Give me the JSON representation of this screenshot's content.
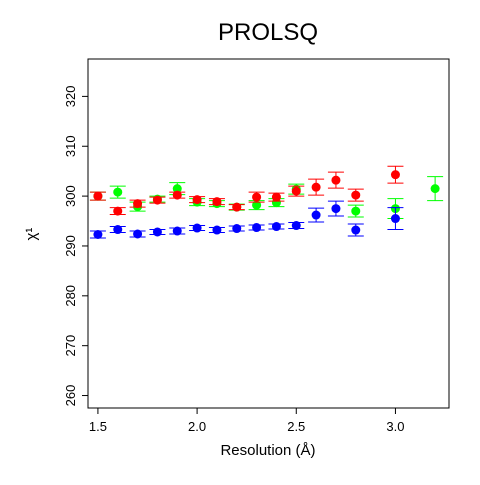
{
  "chart_data": {
    "type": "scatter",
    "title": "PROLSQ",
    "xlabel": "Resolution (Å)",
    "ylabel": "χ¹",
    "xlim": [
      1.45,
      3.27
    ],
    "ylim": [
      257.5,
      327.5
    ],
    "x_ticks": [
      1.5,
      2.0,
      2.5,
      3.0
    ],
    "x_tick_labels": [
      "1.5",
      "2.0",
      "2.5",
      "3.0"
    ],
    "y_ticks": [
      260,
      270,
      280,
      290,
      300,
      310,
      320
    ],
    "y_tick_labels": [
      "260",
      "270",
      "280",
      "290",
      "300",
      "310",
      "320"
    ],
    "grid": false,
    "legend": "none",
    "series": [
      {
        "color": "#00ff00",
        "points": [
          {
            "x": 1.5,
            "y": 300.0,
            "err": 0.8
          },
          {
            "x": 1.6,
            "y": 300.8,
            "err": 1.2
          },
          {
            "x": 1.7,
            "y": 297.9,
            "err": 0.9
          },
          {
            "x": 1.8,
            "y": 299.4,
            "err": 0.6
          },
          {
            "x": 1.9,
            "y": 301.5,
            "err": 1.2
          },
          {
            "x": 2.0,
            "y": 298.8,
            "err": 0.7
          },
          {
            "x": 2.1,
            "y": 298.5,
            "err": 0.6
          },
          {
            "x": 2.2,
            "y": 297.8,
            "err": 0.6
          },
          {
            "x": 2.3,
            "y": 298.2,
            "err": 0.9
          },
          {
            "x": 2.4,
            "y": 298.7,
            "err": 0.8
          },
          {
            "x": 2.5,
            "y": 301.4,
            "err": 1.0
          },
          {
            "x": 2.8,
            "y": 297.0,
            "err": 1.2
          },
          {
            "x": 3.0,
            "y": 297.5,
            "err": 2.0
          },
          {
            "x": 3.2,
            "y": 301.5,
            "err": 2.4
          }
        ]
      },
      {
        "color": "#ff0000",
        "points": [
          {
            "x": 1.5,
            "y": 300.0,
            "err": 0.8
          },
          {
            "x": 1.6,
            "y": 297.0,
            "err": 0.7
          },
          {
            "x": 1.7,
            "y": 298.5,
            "err": 0.7
          },
          {
            "x": 1.8,
            "y": 299.2,
            "err": 0.6
          },
          {
            "x": 1.9,
            "y": 300.2,
            "err": 0.6
          },
          {
            "x": 2.0,
            "y": 299.3,
            "err": 0.6
          },
          {
            "x": 2.1,
            "y": 298.9,
            "err": 0.6
          },
          {
            "x": 2.2,
            "y": 297.8,
            "err": 0.5
          },
          {
            "x": 2.3,
            "y": 299.8,
            "err": 1.0
          },
          {
            "x": 2.4,
            "y": 299.8,
            "err": 0.8
          },
          {
            "x": 2.5,
            "y": 301.0,
            "err": 1.0
          },
          {
            "x": 2.6,
            "y": 301.8,
            "err": 1.6
          },
          {
            "x": 2.7,
            "y": 303.2,
            "err": 1.6
          },
          {
            "x": 2.8,
            "y": 300.2,
            "err": 1.2
          },
          {
            "x": 3.0,
            "y": 304.3,
            "err": 1.7
          }
        ]
      },
      {
        "color": "#0000ff",
        "points": [
          {
            "x": 1.5,
            "y": 292.3,
            "err": 0.7
          },
          {
            "x": 1.6,
            "y": 293.3,
            "err": 0.6
          },
          {
            "x": 1.7,
            "y": 292.4,
            "err": 0.6
          },
          {
            "x": 1.8,
            "y": 292.8,
            "err": 0.5
          },
          {
            "x": 1.9,
            "y": 293.0,
            "err": 0.6
          },
          {
            "x": 2.0,
            "y": 293.6,
            "err": 0.5
          },
          {
            "x": 2.1,
            "y": 293.2,
            "err": 0.5
          },
          {
            "x": 2.2,
            "y": 293.5,
            "err": 0.5
          },
          {
            "x": 2.3,
            "y": 293.7,
            "err": 0.5
          },
          {
            "x": 2.4,
            "y": 293.9,
            "err": 0.5
          },
          {
            "x": 2.5,
            "y": 294.1,
            "err": 0.6
          },
          {
            "x": 2.6,
            "y": 296.2,
            "err": 1.4
          },
          {
            "x": 2.7,
            "y": 297.5,
            "err": 1.5
          },
          {
            "x": 2.8,
            "y": 293.2,
            "err": 1.2
          },
          {
            "x": 3.0,
            "y": 295.5,
            "err": 2.2
          }
        ]
      }
    ]
  }
}
